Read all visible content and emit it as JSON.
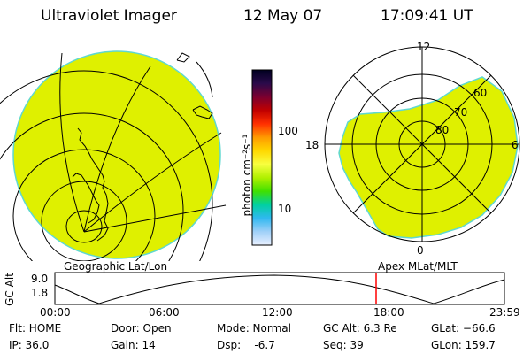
{
  "header": {
    "instrument": "Ultraviolet Imager",
    "date": "12 May 07",
    "time": "17:09:41 UT"
  },
  "colors": {
    "image_fill": "#dff000",
    "image_edge": "#5fd8d0",
    "cursor": "#ff0000"
  },
  "colorbar": {
    "label": "photon cm⁻²s⁻¹",
    "tick_labels": [
      "100",
      "10"
    ],
    "stops": [
      "#000020",
      "#2a0a4a",
      "#7a0030",
      "#c00000",
      "#ff3000",
      "#ff9a00",
      "#ffd800",
      "#f8ff40",
      "#b0f000",
      "#40e000",
      "#00d0a0",
      "#30b8f0",
      "#a0d0f8",
      "#e8f0ff"
    ]
  },
  "panels": {
    "left_label": "Geographic Lat/Lon",
    "right_label": "Apex MLat/MLT"
  },
  "polar_plot": {
    "mlt_labels": {
      "top": "12",
      "left": "18",
      "right": "6",
      "bottom": "0"
    },
    "lat_labels": [
      "80",
      "70",
      "60"
    ]
  },
  "altitude_plot": {
    "ylabel": "GC Alt",
    "y_ticks": [
      "9.0",
      "1.8"
    ],
    "x_ticks": [
      "00:00",
      "06:00",
      "12:00",
      "18:00",
      "23:59"
    ]
  },
  "info": {
    "filter": "Flt: HOME",
    "ip": "IP: 36.0",
    "door": "Door: Open",
    "gain": "Gain: 14",
    "mode": "Mode: Normal",
    "dsp": "Dsp:    -6.7",
    "gcalt": "GC Alt: 6.3 Re",
    "seq": "Seq: 39",
    "glat": "GLat: −66.6",
    "glon": "GLon: 159.7"
  }
}
